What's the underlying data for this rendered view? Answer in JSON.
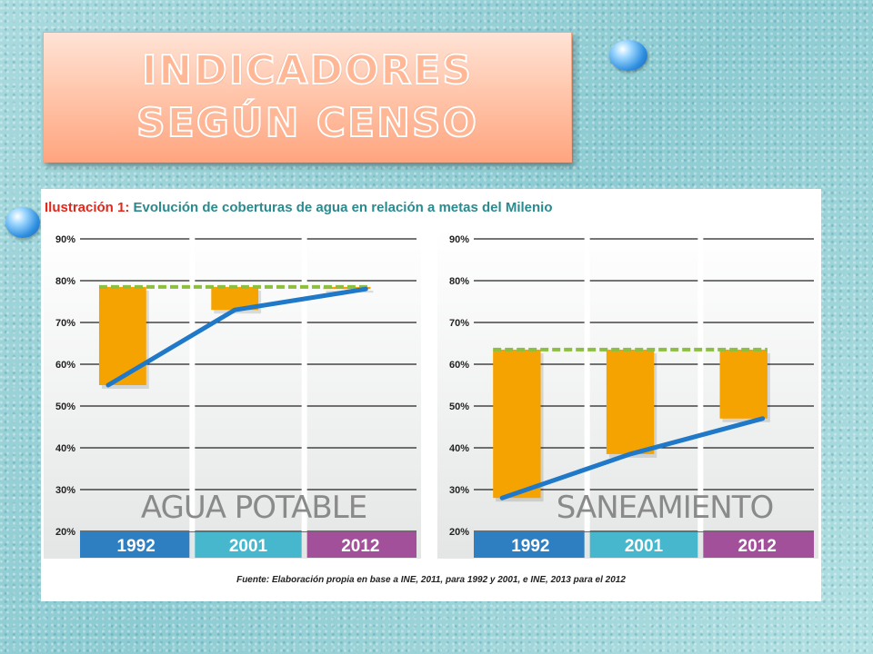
{
  "slide": {
    "title": "INDICADORES SEGÚN CENSO"
  },
  "figure": {
    "label": "Ilustración 1:",
    "caption": "Evolución de coberturas de agua en relación a metas del Milenio",
    "source": "Fuente: Elaboración propia en base a INE, 2011, para 1992 y 2001, e INE, 2013 para el 2012"
  },
  "colors": {
    "bar": "#f5a300",
    "line": "#1f78c8",
    "goal": "#8cbf3f",
    "year_1992": "#2e7fc2",
    "year_2001": "#46b7cc",
    "year_2012": "#a3509a"
  },
  "chart_data": [
    {
      "type": "bar",
      "panel_label": "AGUA POTABLE",
      "categories": [
        "1992",
        "2001",
        "2012"
      ],
      "coverage": [
        55,
        73,
        78
      ],
      "goal": 78.5,
      "series": [
        {
          "values": [
            55,
            73,
            78
          ]
        }
      ],
      "yticks": [
        "20%",
        "30%",
        "40%",
        "50%",
        "60%",
        "70%",
        "80%",
        "90%"
      ],
      "ylim": [
        20,
        90
      ]
    },
    {
      "type": "bar",
      "panel_label": "SANEAMIENTO",
      "categories": [
        "1992",
        "2001",
        "2012"
      ],
      "coverage": [
        28,
        38.5,
        47
      ],
      "goal": 63.5,
      "series": [
        {
          "values": [
            28,
            38.5,
            47
          ]
        }
      ],
      "yticks": [
        "20%",
        "30%",
        "40%",
        "50%",
        "60%",
        "70%",
        "80%",
        "90%"
      ],
      "ylim": [
        20,
        90
      ]
    }
  ]
}
